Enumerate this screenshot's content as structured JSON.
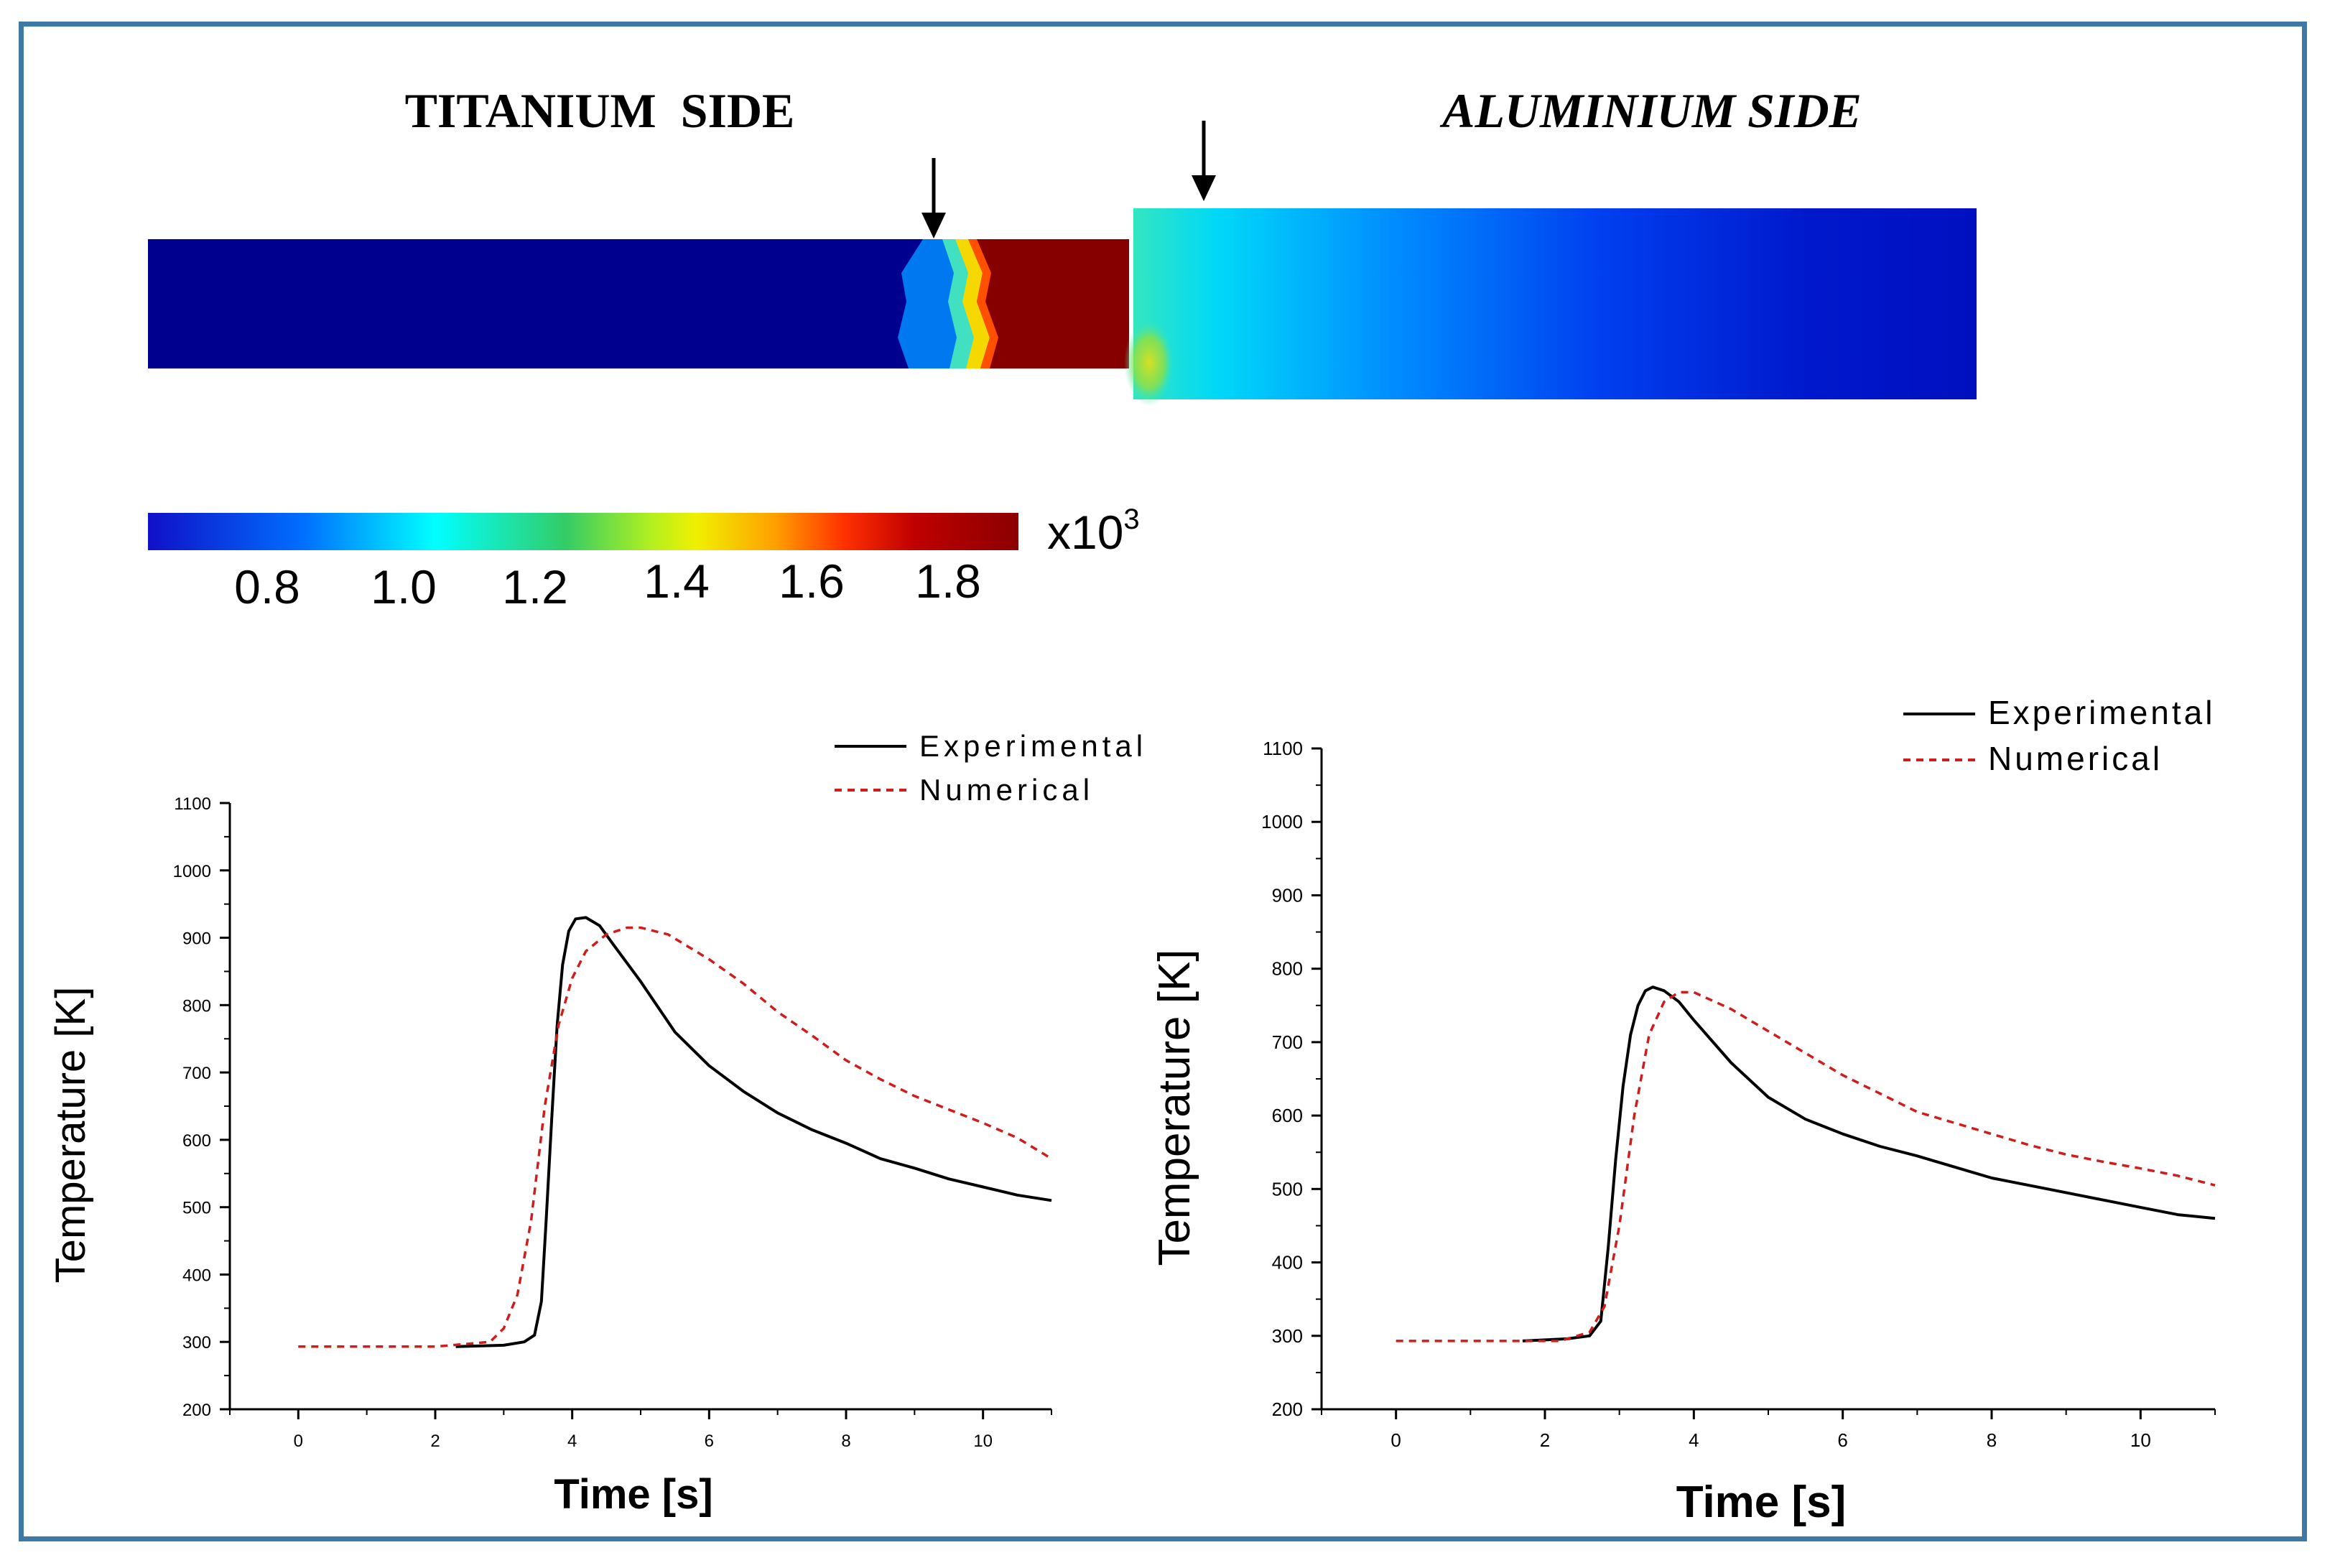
{
  "contour": {
    "left_label": "TITANIUM  SIDE",
    "right_label": "ALUMINIUM SIDE",
    "scale_multiplier_base": "x10",
    "scale_multiplier_exp": "3",
    "colorbar_ticks": [
      "0.8",
      "1.0",
      "1.2",
      "1.4",
      "1.6",
      "1.8"
    ],
    "colors": {
      "ti_cold": "#00008e",
      "hot": "#870000",
      "frame_border": "#3f78a5"
    }
  },
  "chart_data": [
    {
      "type": "line",
      "id": "titanium",
      "title": "",
      "xlabel": "Time [s]",
      "ylabel": "Temperature [K]",
      "xlim": [
        -1,
        11
      ],
      "ylim": [
        200,
        1100
      ],
      "xticks": [
        0,
        2,
        4,
        6,
        8,
        10
      ],
      "yticks": [
        200,
        300,
        400,
        500,
        600,
        700,
        800,
        900,
        1000,
        1100
      ],
      "legend_position": "top-right",
      "series": [
        {
          "name": "Experimental",
          "color": "#000000",
          "dash": "solid",
          "x": [
            2.3,
            3.0,
            3.3,
            3.45,
            3.55,
            3.62,
            3.7,
            3.78,
            3.86,
            3.95,
            4.05,
            4.2,
            4.4,
            4.6,
            5.0,
            5.5,
            6.0,
            6.5,
            7.0,
            7.5,
            8.0,
            8.5,
            9.0,
            9.5,
            10.0,
            10.5,
            11.0
          ],
          "y": [
            293,
            295,
            300,
            310,
            360,
            480,
            630,
            770,
            860,
            910,
            928,
            930,
            918,
            890,
            835,
            760,
            710,
            672,
            640,
            615,
            595,
            572,
            558,
            542,
            530,
            518,
            510
          ]
        },
        {
          "name": "Numerical",
          "color": "#d01c1c",
          "dash": "dashed",
          "x": [
            0,
            1,
            2,
            2.8,
            3.0,
            3.2,
            3.4,
            3.6,
            3.8,
            4.0,
            4.2,
            4.5,
            4.8,
            5.0,
            5.4,
            6.0,
            6.5,
            7.0,
            7.5,
            8.0,
            8.5,
            9.0,
            9.5,
            10.0,
            10.5,
            11.0
          ],
          "y": [
            293,
            293,
            293,
            300,
            320,
            370,
            480,
            650,
            770,
            840,
            880,
            905,
            915,
            915,
            905,
            868,
            832,
            790,
            755,
            718,
            690,
            665,
            645,
            625,
            603,
            572
          ]
        }
      ]
    },
    {
      "type": "line",
      "id": "aluminium",
      "title": "",
      "xlabel": "Time [s]",
      "ylabel": "Temperature [K]",
      "xlim": [
        -1,
        11
      ],
      "ylim": [
        200,
        1100
      ],
      "xticks": [
        0,
        2,
        4,
        6,
        8,
        10
      ],
      "yticks": [
        200,
        300,
        400,
        500,
        600,
        700,
        800,
        900,
        1000,
        1100
      ],
      "legend_position": "top-right",
      "series": [
        {
          "name": "Experimental",
          "color": "#000000",
          "dash": "solid",
          "x": [
            1.7,
            2.3,
            2.6,
            2.75,
            2.85,
            2.95,
            3.05,
            3.15,
            3.25,
            3.35,
            3.45,
            3.6,
            3.8,
            4.0,
            4.5,
            5.0,
            5.5,
            6.0,
            6.5,
            7.0,
            7.5,
            8.0,
            8.5,
            9.0,
            9.5,
            10.0,
            10.5,
            11.0
          ],
          "y": [
            293,
            296,
            300,
            320,
            420,
            540,
            640,
            710,
            750,
            770,
            775,
            770,
            755,
            730,
            672,
            625,
            595,
            575,
            558,
            545,
            530,
            515,
            505,
            495,
            485,
            475,
            465,
            460
          ]
        },
        {
          "name": "Numerical",
          "color": "#d01c1c",
          "dash": "dashed",
          "x": [
            0,
            1,
            2.2,
            2.6,
            2.8,
            3.0,
            3.2,
            3.4,
            3.6,
            3.8,
            4.0,
            4.5,
            5.0,
            5.5,
            6.0,
            6.5,
            7.0,
            7.5,
            8.0,
            8.5,
            9.0,
            9.5,
            10.0,
            10.5,
            11.0
          ],
          "y": [
            293,
            293,
            293,
            305,
            340,
            450,
            600,
            710,
            755,
            768,
            768,
            745,
            715,
            685,
            655,
            630,
            605,
            590,
            575,
            560,
            547,
            537,
            528,
            518,
            505
          ]
        }
      ]
    }
  ]
}
